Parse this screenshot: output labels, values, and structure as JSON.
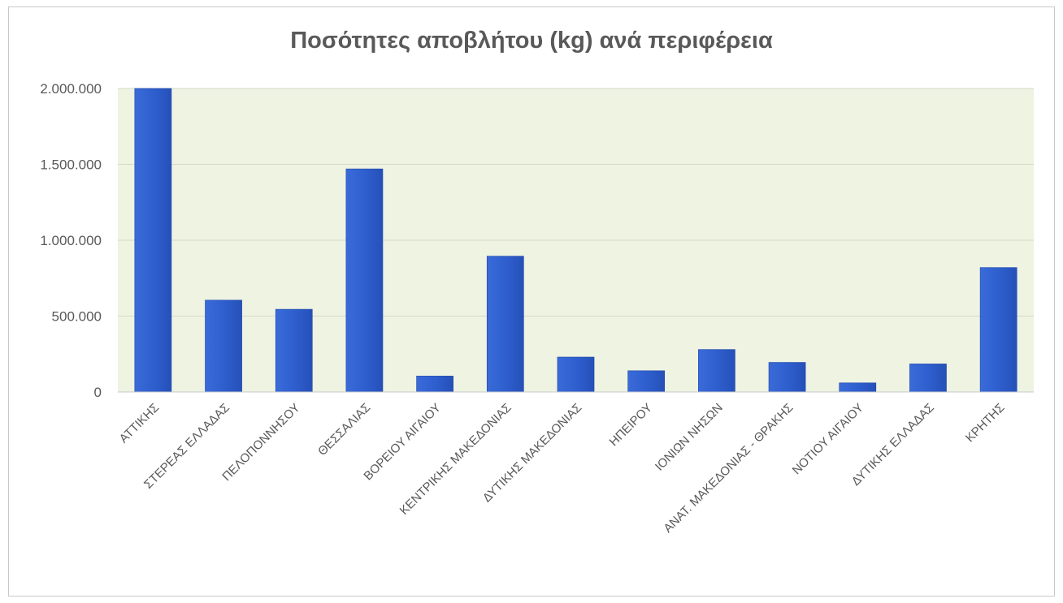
{
  "chart_data": {
    "type": "bar",
    "title": "Ποσότητες αποβλήτου (kg) ανά περιφέρεια",
    "xlabel": "",
    "ylabel": "",
    "ylim": [
      0,
      2000000
    ],
    "yticks": [
      0,
      500000,
      1000000,
      1500000,
      2000000
    ],
    "ytick_labels": [
      "0",
      "500.000",
      "1.000.000",
      "1.500.000",
      "2.000.000"
    ],
    "grid": true,
    "legend": "none",
    "categories": [
      "ΑΤΤΙΚΗΣ",
      "ΣΤΕΡΕΑΣ ΕΛΛΑΔΑΣ",
      "ΠΕΛΟΠΟΝΝΗΣΟΥ",
      "ΘΕΣΣΑΛΙΑΣ",
      "ΒΟΡΕΙΟΥ ΑΙΓΑΙΟΥ",
      "ΚΕΝΤΡΙΚΗΣ ΜΑΚΕΔΟΝΙΑΣ",
      "ΔΥΤΙΚΗΣ ΜΑΚΕΔΟΝΙΑΣ",
      "ΗΠΕΙΡΟΥ",
      "ΙΟΝΙΩΝ ΝΗΣΩΝ",
      "ΑΝΑΤ. ΜΑΚΕΔΟΝΙΑΣ - ΘΡΑΚΗΣ",
      "ΝΟΤΙΟΥ ΑΙΓΑΙΟΥ",
      "ΔΥΤΙΚΗΣ ΕΛΛΑΔΑΣ",
      "ΚΡΗΤΗΣ"
    ],
    "values": [
      2000000,
      605000,
      545000,
      1470000,
      105000,
      895000,
      230000,
      140000,
      280000,
      195000,
      60000,
      185000,
      820000
    ],
    "colors": {
      "bar": "#2f5fcf",
      "bar_edge": "#1f45a8",
      "plot_bg": "#eef3e2",
      "grid": "#d4d9c8",
      "text": "#595959"
    }
  }
}
